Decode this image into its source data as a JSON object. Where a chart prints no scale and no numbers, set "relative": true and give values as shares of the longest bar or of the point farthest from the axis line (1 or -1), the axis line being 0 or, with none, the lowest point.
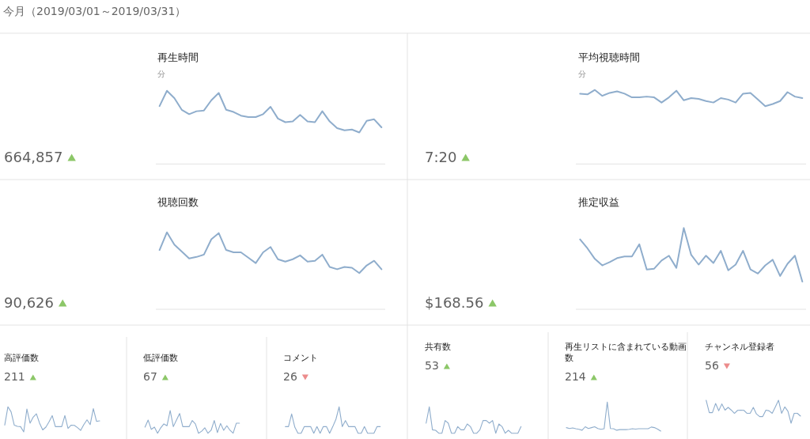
{
  "chart_data": [
    {
      "type": "other",
      "title": "今月（2019/03/01～2019/03/31）"
    },
    {
      "type": "line",
      "title": "再生時間",
      "subtitle": "分",
      "annotations": [
        "664,857"
      ],
      "relative": true,
      "categories": [
        null,
        null,
        null,
        null,
        null,
        null,
        null,
        null,
        null,
        null,
        null,
        null,
        null,
        null,
        null,
        null,
        null,
        null,
        null,
        null,
        null,
        null,
        null,
        null,
        null,
        null,
        null,
        null,
        null,
        null,
        null
      ],
      "series": [
        {
          "color": "#8fadcc",
          "values": [
            0.79,
            1.0,
            0.9,
            0.74,
            0.68,
            0.72,
            0.73,
            0.87,
            0.97,
            0.74,
            0.71,
            0.66,
            0.64,
            0.64,
            0.68,
            0.78,
            0.62,
            0.57,
            0.58,
            0.67,
            0.58,
            0.57,
            0.72,
            0.58,
            0.49,
            0.46,
            0.47,
            0.43,
            0.59,
            0.61,
            0.5
          ]
        }
      ]
    },
    {
      "type": "line",
      "title": "平均視聴時間",
      "subtitle": "分",
      "annotations": [
        "7:20"
      ],
      "relative": true,
      "categories": [
        null,
        null,
        null,
        null,
        null,
        null,
        null,
        null,
        null,
        null,
        null,
        null,
        null,
        null,
        null,
        null,
        null,
        null,
        null,
        null,
        null,
        null,
        null,
        null,
        null,
        null,
        null,
        null,
        null,
        null,
        null
      ],
      "series": [
        {
          "color": "#8fadcc",
          "values": [
            0.95,
            0.94,
            1.0,
            0.92,
            0.96,
            0.98,
            0.95,
            0.9,
            0.9,
            0.91,
            0.9,
            0.83,
            0.9,
            0.99,
            0.86,
            0.89,
            0.88,
            0.85,
            0.83,
            0.89,
            0.87,
            0.83,
            0.95,
            0.96,
            0.87,
            0.78,
            0.81,
            0.85,
            0.97,
            0.91,
            0.89
          ]
        }
      ]
    },
    {
      "type": "line",
      "title": "視聴回数",
      "annotations": [
        "90,626"
      ],
      "relative": true,
      "categories": [
        null,
        null,
        null,
        null,
        null,
        null,
        null,
        null,
        null,
        null,
        null,
        null,
        null,
        null,
        null,
        null,
        null,
        null,
        null,
        null,
        null,
        null,
        null,
        null,
        null,
        null,
        null,
        null,
        null,
        null,
        null
      ],
      "series": [
        {
          "color": "#8fadcc",
          "values": [
            0.77,
            1.0,
            0.84,
            0.75,
            0.66,
            0.68,
            0.71,
            0.91,
            0.99,
            0.77,
            0.74,
            0.74,
            0.67,
            0.6,
            0.74,
            0.81,
            0.65,
            0.62,
            0.65,
            0.7,
            0.62,
            0.63,
            0.71,
            0.55,
            0.52,
            0.55,
            0.54,
            0.47,
            0.57,
            0.63,
            0.52
          ]
        }
      ]
    },
    {
      "type": "line",
      "title": "推定収益",
      "annotations": [
        "$168.56"
      ],
      "relative": true,
      "categories": [
        null,
        null,
        null,
        null,
        null,
        null,
        null,
        null,
        null,
        null,
        null,
        null,
        null,
        null,
        null,
        null,
        null,
        null,
        null,
        null,
        null,
        null,
        null,
        null,
        null,
        null,
        null,
        null,
        null,
        null,
        null
      ],
      "series": [
        {
          "color": "#8fadcc",
          "values": [
            0.86,
            0.75,
            0.62,
            0.54,
            0.58,
            0.63,
            0.65,
            0.65,
            0.8,
            0.49,
            0.5,
            0.6,
            0.66,
            0.51,
            1.0,
            0.67,
            0.55,
            0.66,
            0.57,
            0.72,
            0.48,
            0.55,
            0.72,
            0.49,
            0.44,
            0.54,
            0.61,
            0.41,
            0.56,
            0.66,
            0.34
          ]
        }
      ]
    },
    {
      "type": "line",
      "title": "高評価数",
      "annotations": [
        "211"
      ],
      "relative": true,
      "categories": [
        null,
        null,
        null,
        null,
        null,
        null,
        null,
        null,
        null,
        null,
        null,
        null,
        null,
        null,
        null,
        null,
        null,
        null,
        null,
        null,
        null,
        null,
        null,
        null,
        null,
        null,
        null,
        null,
        null,
        null,
        null
      ],
      "series": [
        {
          "color": "#8fadcc",
          "values": [
            0.27,
            1.0,
            0.8,
            0.27,
            0.22,
            0.21,
            0,
            0.91,
            0.35,
            0.59,
            0.72,
            0.35,
            0.08,
            0.19,
            0.4,
            0.65,
            0.21,
            0.21,
            0.21,
            0.65,
            0.14,
            0.27,
            0.26,
            0.17,
            0.06,
            0.29,
            0.48,
            0.29,
            0.93,
            0.42,
            0.44
          ]
        }
      ]
    },
    {
      "type": "line",
      "title": "低評価数",
      "annotations": [
        "67"
      ],
      "relative": true,
      "categories": [
        null,
        null,
        null,
        null,
        null,
        null,
        null,
        null,
        null,
        null,
        null,
        null,
        null,
        null,
        null,
        null,
        null,
        null,
        null,
        null,
        null,
        null,
        null,
        null,
        null,
        null,
        null,
        null,
        null,
        null,
        null
      ],
      "series": [
        {
          "color": "#8fadcc",
          "values": [
            0.27,
            0.58,
            0.17,
            0.27,
            0,
            0.24,
            0.41,
            0.33,
            1.0,
            0.29,
            0.58,
            0.87,
            0.29,
            0.29,
            0.29,
            0.56,
            0.41,
            0,
            0.09,
            0.24,
            0,
            0.13,
            0.56,
            0.03,
            0.43,
            0.13,
            0.33,
            0.13,
            0,
            0.44,
            0.44
          ]
        }
      ]
    },
    {
      "type": "line",
      "title": "コメント",
      "annotations": [
        "26"
      ],
      "relative": true,
      "categories": [
        null,
        null,
        null,
        null,
        null,
        null,
        null,
        null,
        null,
        null,
        null,
        null,
        null,
        null,
        null,
        null,
        null,
        null,
        null,
        null,
        null,
        null,
        null,
        null,
        null,
        null,
        null,
        null,
        null,
        null,
        null
      ],
      "series": [
        {
          "color": "#8fadcc",
          "values": [
            0.25,
            0.25,
            0.73,
            0.23,
            0,
            0,
            0.25,
            0.25,
            0.25,
            0,
            0.25,
            0,
            0.25,
            0.25,
            0,
            0.25,
            0.53,
            1.0,
            0.25,
            0.48,
            0.25,
            0.25,
            0.25,
            0,
            0,
            0.25,
            0,
            0,
            0,
            0.25,
            0.25
          ]
        }
      ]
    },
    {
      "type": "line",
      "title": "共有数",
      "annotations": [
        "53"
      ],
      "relative": true,
      "categories": [
        null,
        null,
        null,
        null,
        null,
        null,
        null,
        null,
        null,
        null,
        null,
        null,
        null,
        null,
        null,
        null,
        null,
        null,
        null,
        null,
        null,
        null,
        null,
        null,
        null,
        null,
        null,
        null,
        null,
        null,
        null
      ],
      "series": [
        {
          "color": "#8fadcc",
          "values": [
            0.38,
            1.0,
            0.13,
            0.11,
            0,
            0,
            0.48,
            0.38,
            0,
            0,
            0.25,
            0.13,
            0.13,
            0.35,
            0.25,
            0,
            0,
            0.13,
            0.48,
            0.48,
            0.38,
            0.48,
            0,
            0.35,
            0.25,
            0,
            0.11,
            0,
            0,
            0,
            0.25
          ]
        }
      ]
    },
    {
      "type": "line",
      "title": "再生リストに含まれている動画数",
      "annotations": [
        "214"
      ],
      "relative": true,
      "categories": [
        null,
        null,
        null,
        null,
        null,
        null,
        null,
        null,
        null,
        null,
        null,
        null,
        null,
        null,
        null,
        null,
        null,
        null,
        null,
        null,
        null,
        null,
        null,
        null,
        null,
        null,
        null,
        null,
        null,
        null,
        null
      ],
      "series": [
        {
          "color": "#8fadcc",
          "values": [
            0.12,
            0.09,
            0.11,
            0.08,
            0.06,
            0.03,
            0.15,
            0.09,
            0.12,
            0.15,
            0.09,
            0.06,
            0.08,
            1.0,
            0.09,
            0.08,
            0.03,
            0.05,
            0.05,
            0.05,
            0.06,
            0.08,
            0.07,
            0.08,
            0.08,
            0.08,
            0.08,
            0.14,
            0.12,
            0.07,
            0
          ]
        }
      ]
    },
    {
      "type": "line",
      "title": "チャンネル登録者",
      "annotations": [
        "56"
      ],
      "relative": true,
      "categories": [
        null,
        null,
        null,
        null,
        null,
        null,
        null,
        null,
        null,
        null,
        null,
        null,
        null,
        null,
        null,
        null,
        null,
        null,
        null,
        null,
        null,
        null,
        null,
        null,
        null,
        null,
        null,
        null,
        null,
        null,
        null
      ],
      "series": [
        {
          "color": "#8fadcc",
          "values": [
            1.0,
            0.46,
            0.46,
            0.86,
            0.54,
            0.84,
            0.57,
            0.69,
            0.57,
            0.43,
            0.56,
            0.57,
            0.56,
            0.43,
            0.43,
            0.69,
            0.4,
            0.29,
            0.29,
            0.57,
            0.54,
            0.43,
            0.71,
            1.0,
            0.43,
            0.71,
            0.52,
            0,
            0.43,
            0.43,
            0.31
          ]
        }
      ]
    }
  ]
}
